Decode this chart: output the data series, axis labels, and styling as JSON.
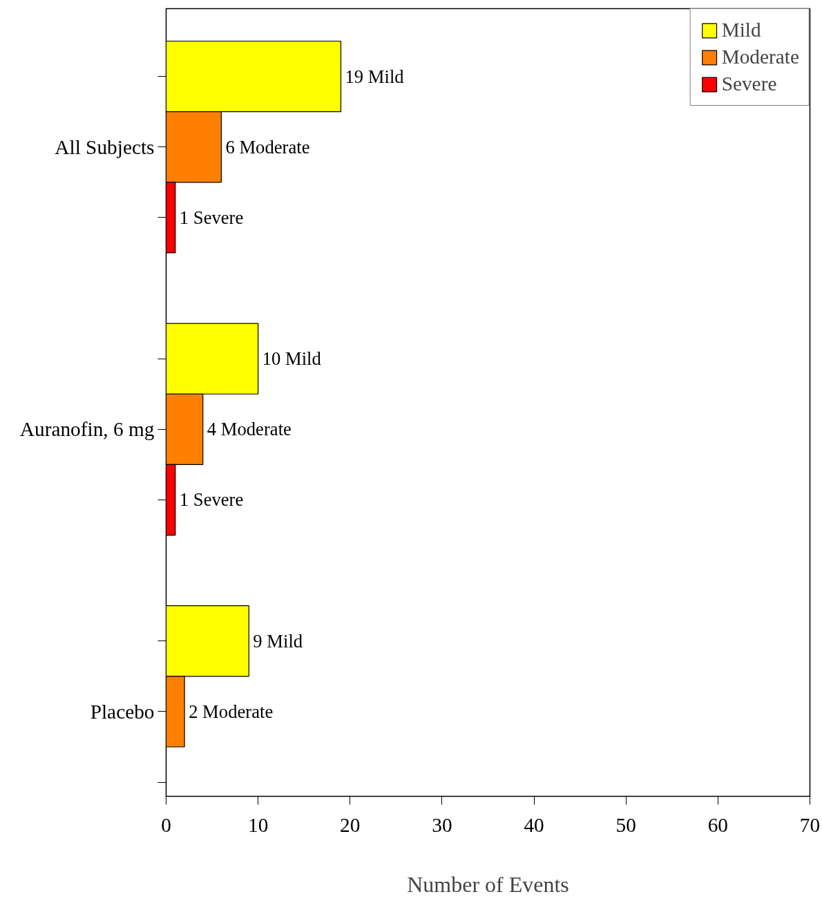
{
  "chart_data": {
    "type": "bar",
    "orientation": "horizontal",
    "xlabel": "Number of Events",
    "categories": [
      "All Subjects",
      "Auranofin, 6 mg",
      "Placebo"
    ],
    "series": [
      {
        "name": "Mild",
        "color": "#ffff00",
        "values": [
          19,
          10,
          9
        ],
        "value_labels": [
          "19 Mild",
          "10 Mild",
          "9 Mild"
        ]
      },
      {
        "name": "Moderate",
        "color": "#ff7f00",
        "values": [
          6,
          4,
          2
        ],
        "value_labels": [
          "6 Moderate",
          "4 Moderate",
          "2 Moderate"
        ]
      },
      {
        "name": "Severe",
        "color": "#ff0000",
        "values": [
          1,
          1,
          null
        ],
        "value_labels": [
          "1 Severe",
          "1 Severe",
          null
        ]
      }
    ],
    "xlim": [
      0,
      70
    ],
    "xticks": [
      0,
      10,
      20,
      30,
      40,
      50,
      60,
      70
    ],
    "legend": "top right",
    "grid": false
  }
}
